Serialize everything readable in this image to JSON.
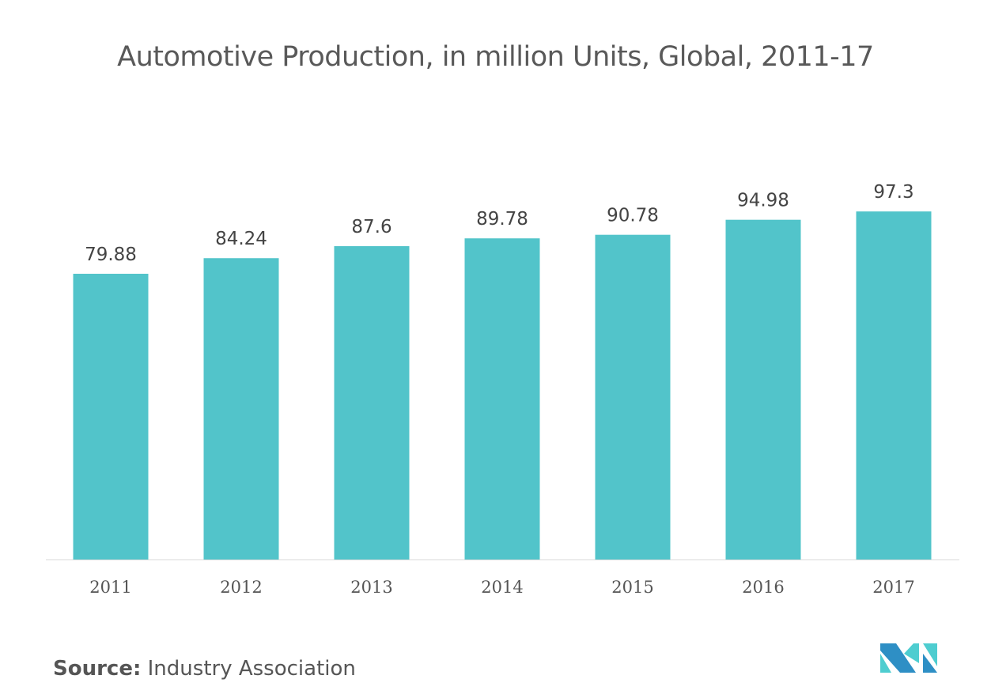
{
  "chart_data": {
    "type": "bar",
    "title": "Automotive Production, in million Units, Global, 2011-17",
    "categories": [
      "2011",
      "2012",
      "2013",
      "2014",
      "2015",
      "2016",
      "2017"
    ],
    "values": [
      79.88,
      84.24,
      87.6,
      89.78,
      90.78,
      94.98,
      97.3
    ],
    "value_labels": [
      "79.88",
      "84.24",
      "87.6",
      "89.78",
      "90.78",
      "94.98",
      "97.3"
    ],
    "xlabel": "",
    "ylabel": "",
    "ylim": [
      0,
      100
    ],
    "grid": false,
    "bar_color": "#52c4ca"
  },
  "source": {
    "label": "Source:",
    "text": "Industry Association"
  },
  "logo": {
    "colors": [
      "#2e8fc5",
      "#4ecdd0"
    ]
  }
}
